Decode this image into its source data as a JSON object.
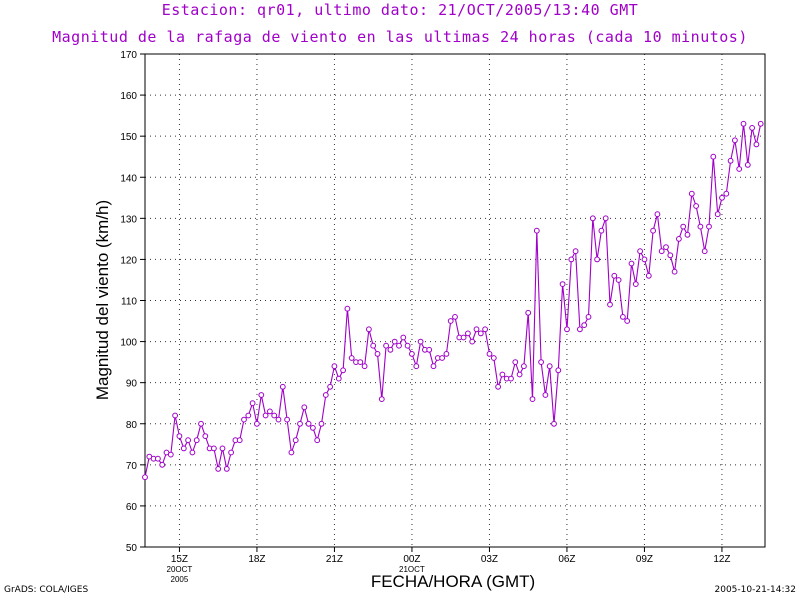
{
  "chart_data": {
    "type": "line",
    "title": "Estacion: qr01, ultimo dato: 21/OCT/2005/13:40 GMT",
    "subtitle": "Magnitud de la rafaga de viento en las ultimas 24 horas (cada 10 minutos)",
    "xlabel": "FECHA/HORA (GMT)",
    "ylabel": "Magnitud del viento (km/h)",
    "ylim": [
      50,
      170
    ],
    "yticks": [
      50,
      60,
      70,
      80,
      90,
      100,
      110,
      120,
      130,
      140,
      150,
      160,
      170
    ],
    "x_unit": "hours GMT",
    "xlim": [
      13.6667,
      37.6667
    ],
    "xticks": [
      {
        "x": 15,
        "lines": [
          "15Z",
          "20OCT",
          "2005"
        ]
      },
      {
        "x": 18,
        "lines": [
          "18Z"
        ]
      },
      {
        "x": 21,
        "lines": [
          "21Z"
        ]
      },
      {
        "x": 24,
        "lines": [
          "00Z",
          "21OCT"
        ]
      },
      {
        "x": 27,
        "lines": [
          "03Z"
        ]
      },
      {
        "x": 30,
        "lines": [
          "06Z"
        ]
      },
      {
        "x": 33,
        "lines": [
          "09Z"
        ]
      },
      {
        "x": 36,
        "lines": [
          "12Z"
        ]
      }
    ],
    "grid": true,
    "series": [
      {
        "color": "#a000c8",
        "x_start": 13.6667,
        "x_step": 0.16667,
        "values": [
          67,
          72,
          71.5,
          71.5,
          70,
          73,
          72.5,
          82,
          77,
          74,
          76,
          73,
          76,
          80,
          77,
          74,
          74,
          69,
          74,
          69,
          73,
          76,
          76,
          81,
          82,
          85,
          80,
          87,
          82,
          83,
          82,
          81,
          89,
          81,
          73,
          76,
          80,
          84,
          80,
          79,
          76,
          80,
          87,
          89,
          94,
          91,
          93,
          108,
          96,
          95,
          95,
          94,
          103,
          99,
          97,
          86,
          99,
          98,
          100,
          99,
          101,
          99,
          97,
          94,
          100,
          98,
          98,
          94,
          96,
          96,
          97,
          105,
          106,
          101,
          101,
          102,
          100,
          103,
          102,
          103,
          97,
          96,
          89,
          92,
          91,
          91,
          95,
          92,
          94,
          107,
          86,
          127,
          95,
          87,
          94,
          80,
          93,
          114,
          103,
          120,
          122,
          103,
          104,
          106,
          130,
          120,
          127,
          130,
          109,
          116,
          115,
          106,
          105,
          119,
          114,
          122,
          120,
          116,
          127,
          131,
          122,
          123,
          121,
          117,
          125,
          128,
          126,
          136,
          133,
          128,
          122,
          128,
          145,
          131,
          135,
          136,
          144,
          149,
          142,
          153,
          143,
          152,
          148,
          153
        ]
      }
    ]
  },
  "footer": {
    "left": "GrADS: COLA/IGES",
    "right": "2005-10-21-14:32"
  },
  "colors": {
    "series": "#a000c8",
    "axis": "#000000",
    "grid": "#000000"
  }
}
